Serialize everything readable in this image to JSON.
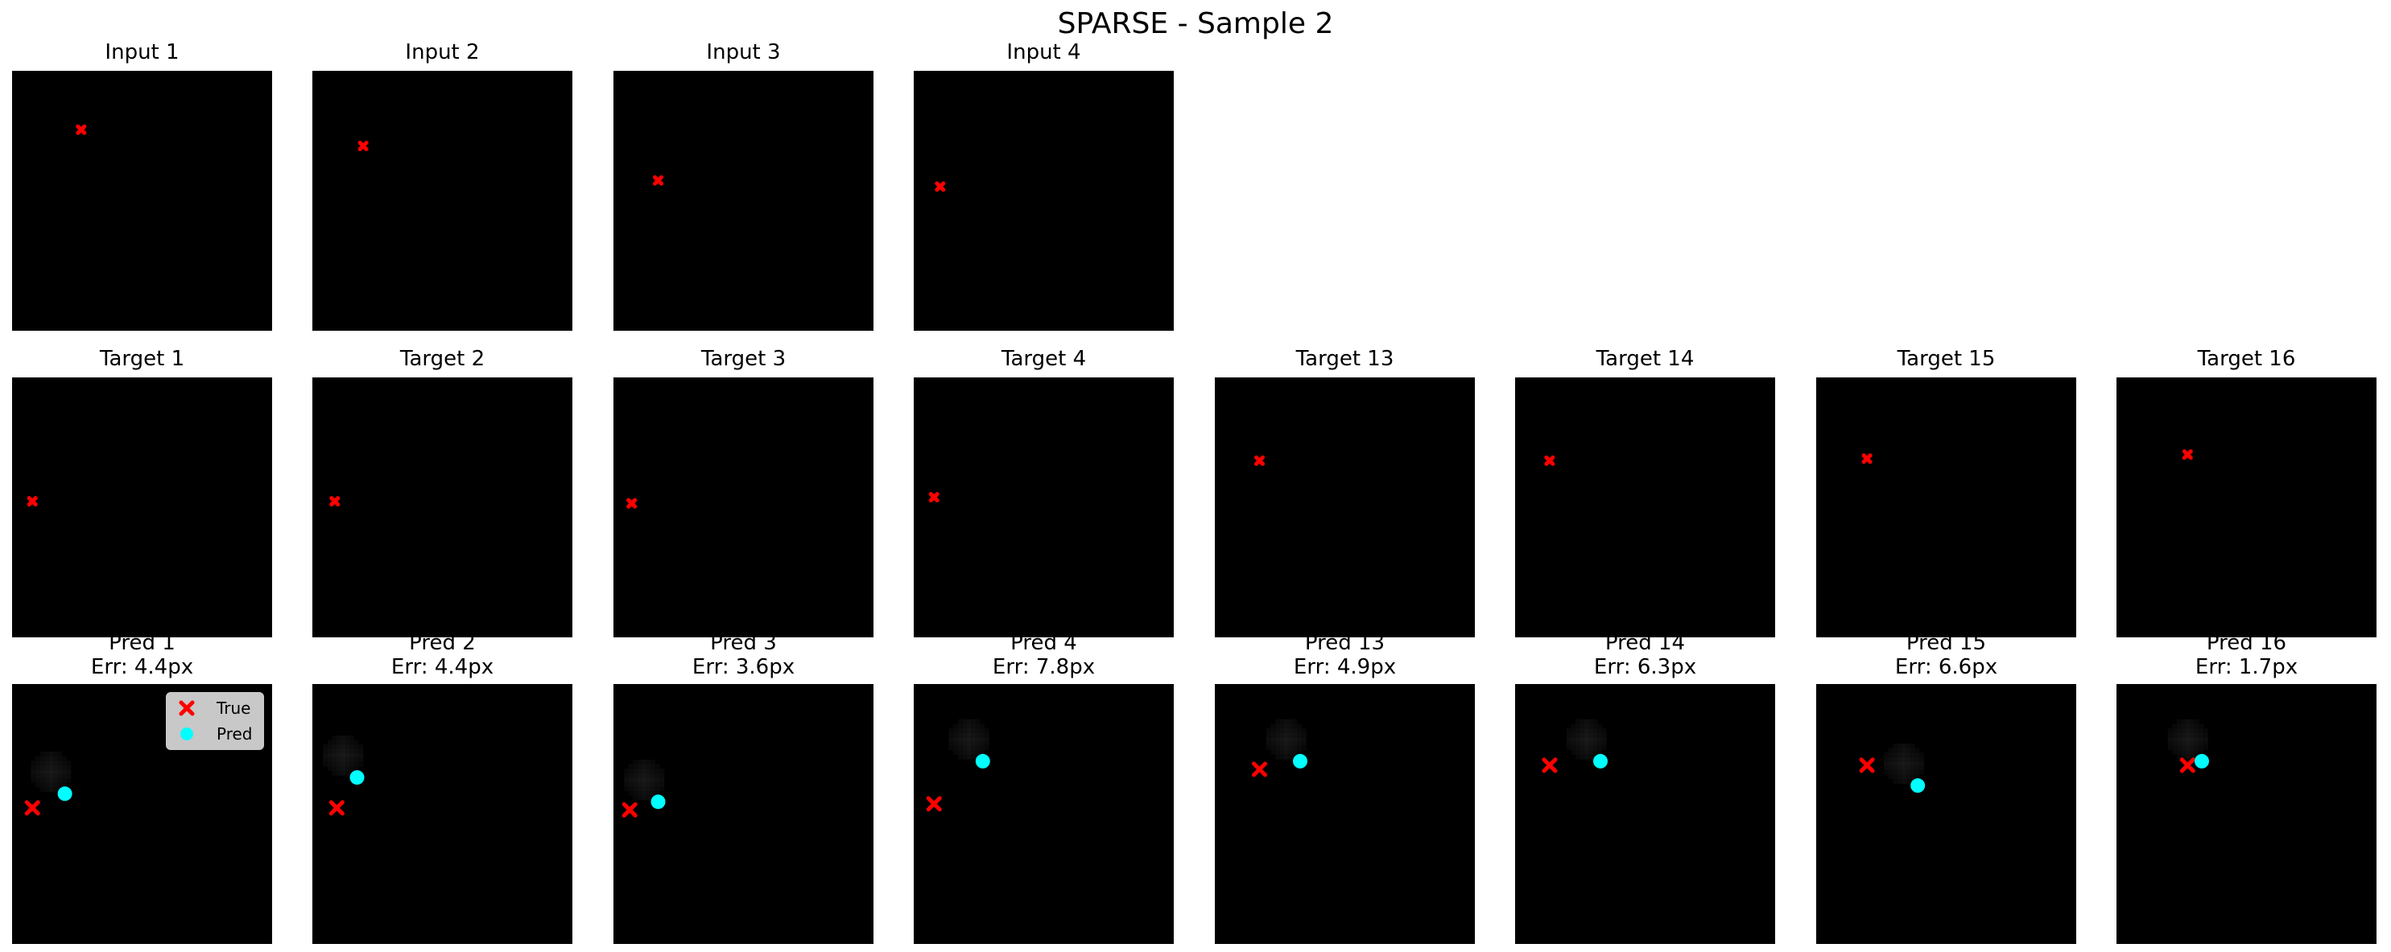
{
  "title": "SPARSE - Sample 2",
  "colors": {
    "true_marker": "#ff0000",
    "pred_marker": "#00ffff",
    "background": "#000000",
    "point": "#ffffff"
  },
  "legend": {
    "true_label": "True",
    "pred_label": "Pred",
    "placement": "upper right"
  },
  "chart_data": {
    "type": "scatter",
    "grid": false,
    "xlim": [
      0,
      64
    ],
    "ylim": [
      0,
      64
    ],
    "inputs": [
      {
        "title": "Input 1",
        "x": 17,
        "y": 14.5
      },
      {
        "title": "Input 2",
        "x": 12.5,
        "y": 18.5
      },
      {
        "title": "Input 3",
        "x": 11,
        "y": 27
      },
      {
        "title": "Input 4",
        "x": 6.5,
        "y": 28.5
      }
    ],
    "targets": [
      {
        "title": "Target 1",
        "x": 5,
        "y": 30.5
      },
      {
        "title": "Target 2",
        "x": 5.5,
        "y": 30.5
      },
      {
        "title": "Target 3",
        "x": 4.5,
        "y": 31
      },
      {
        "title": "Target 4",
        "x": 5,
        "y": 29.5
      },
      {
        "title": "Target 13",
        "x": 11,
        "y": 20.5
      },
      {
        "title": "Target 14",
        "x": 8.5,
        "y": 20.5
      },
      {
        "title": "Target 15",
        "x": 12.5,
        "y": 20
      },
      {
        "title": "Target 16",
        "x": 17.5,
        "y": 19
      }
    ],
    "predictions": [
      {
        "title": "Pred 1",
        "error": "Err: 4.4px",
        "true": [
          5,
          30.5
        ],
        "pred": [
          13,
          27
        ]
      },
      {
        "title": "Pred 2",
        "error": "Err: 4.4px",
        "true": [
          6,
          30.5
        ],
        "pred": [
          11,
          23
        ]
      },
      {
        "title": "Pred 3",
        "error": "Err: 3.6px",
        "true": [
          4,
          31
        ],
        "pred": [
          11,
          29
        ]
      },
      {
        "title": "Pred 4",
        "error": "Err: 7.8px",
        "true": [
          5,
          29.5
        ],
        "pred": [
          17,
          19
        ]
      },
      {
        "title": "Pred 13",
        "error": "Err: 4.9px",
        "true": [
          11,
          21
        ],
        "pred": [
          21,
          19
        ]
      },
      {
        "title": "Pred 14",
        "error": "Err: 6.3px",
        "true": [
          8.5,
          20
        ],
        "pred": [
          21,
          19
        ]
      },
      {
        "title": "Pred 15",
        "error": "Err: 6.6px",
        "true": [
          12.5,
          20
        ],
        "pred": [
          25,
          25
        ]
      },
      {
        "title": "Pred 16",
        "error": "Err: 1.7px",
        "true": [
          17.5,
          20
        ],
        "pred": [
          21,
          19
        ]
      }
    ]
  }
}
